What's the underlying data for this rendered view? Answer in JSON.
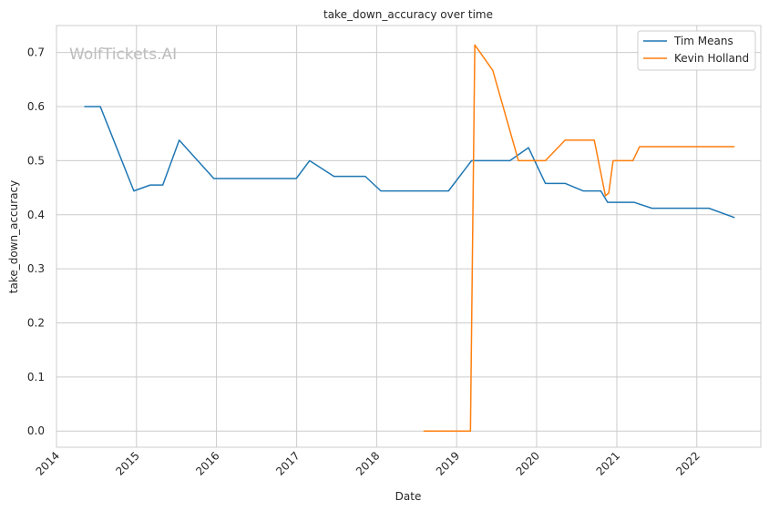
{
  "chart_data": {
    "type": "line",
    "title": "take_down_accuracy over time",
    "xlabel": "Date",
    "ylabel": "take_down_accuracy",
    "watermark": "WolfTickets.AI",
    "xlim": [
      "2014-01-01",
      "2022-10-20"
    ],
    "ylim": [
      -0.03,
      0.75
    ],
    "x_ticks": [
      "2014",
      "2015",
      "2016",
      "2017",
      "2018",
      "2019",
      "2020",
      "2021",
      "2022"
    ],
    "y_ticks": [
      "0.0",
      "0.1",
      "0.2",
      "0.3",
      "0.4",
      "0.5",
      "0.6",
      "0.7"
    ],
    "y_tick_values": [
      0.0,
      0.1,
      0.2,
      0.3,
      0.4,
      0.5,
      0.6,
      0.7
    ],
    "grid": true,
    "legend_position": "top-right",
    "series": [
      {
        "name": "Tim Means",
        "color": "#1f77b4",
        "points": [
          [
            "2014-05-10",
            0.6
          ],
          [
            "2014-07-20",
            0.6
          ],
          [
            "2014-12-20",
            0.444
          ],
          [
            "2015-03-05",
            0.455
          ],
          [
            "2015-05-01",
            0.455
          ],
          [
            "2015-07-15",
            0.538
          ],
          [
            "2015-12-20",
            0.467
          ],
          [
            "2016-06-01",
            0.467
          ],
          [
            "2016-12-30",
            0.467
          ],
          [
            "2017-03-01",
            0.5
          ],
          [
            "2017-06-20",
            0.471
          ],
          [
            "2017-11-10",
            0.471
          ],
          [
            "2018-01-20",
            0.444
          ],
          [
            "2018-08-01",
            0.444
          ],
          [
            "2018-11-25",
            0.444
          ],
          [
            "2019-03-10",
            0.5
          ],
          [
            "2019-09-01",
            0.5
          ],
          [
            "2019-11-25",
            0.524
          ],
          [
            "2020-02-10",
            0.458
          ],
          [
            "2020-05-10",
            0.458
          ],
          [
            "2020-08-01",
            0.444
          ],
          [
            "2020-10-20",
            0.444
          ],
          [
            "2020-11-20",
            0.423
          ],
          [
            "2021-03-20",
            0.423
          ],
          [
            "2021-06-10",
            0.412
          ],
          [
            "2022-01-01",
            0.412
          ],
          [
            "2022-02-25",
            0.412
          ],
          [
            "2022-06-20",
            0.395
          ]
        ]
      },
      {
        "name": "Kevin Holland",
        "color": "#ff7f0e",
        "points": [
          [
            "2018-08-05",
            0.0
          ],
          [
            "2019-01-01",
            0.0
          ],
          [
            "2019-03-05",
            0.0
          ],
          [
            "2019-03-25",
            0.714
          ],
          [
            "2019-06-15",
            0.667
          ],
          [
            "2019-10-10",
            0.5
          ],
          [
            "2020-02-10",
            0.5
          ],
          [
            "2020-05-10",
            0.538
          ],
          [
            "2020-09-20",
            0.538
          ],
          [
            "2020-11-10",
            0.435
          ],
          [
            "2020-11-25",
            0.44
          ],
          [
            "2020-12-15",
            0.5
          ],
          [
            "2021-03-15",
            0.5
          ],
          [
            "2021-04-15",
            0.526
          ],
          [
            "2021-10-01",
            0.526
          ],
          [
            "2022-03-01",
            0.526
          ],
          [
            "2022-06-20",
            0.526
          ]
        ]
      }
    ]
  }
}
